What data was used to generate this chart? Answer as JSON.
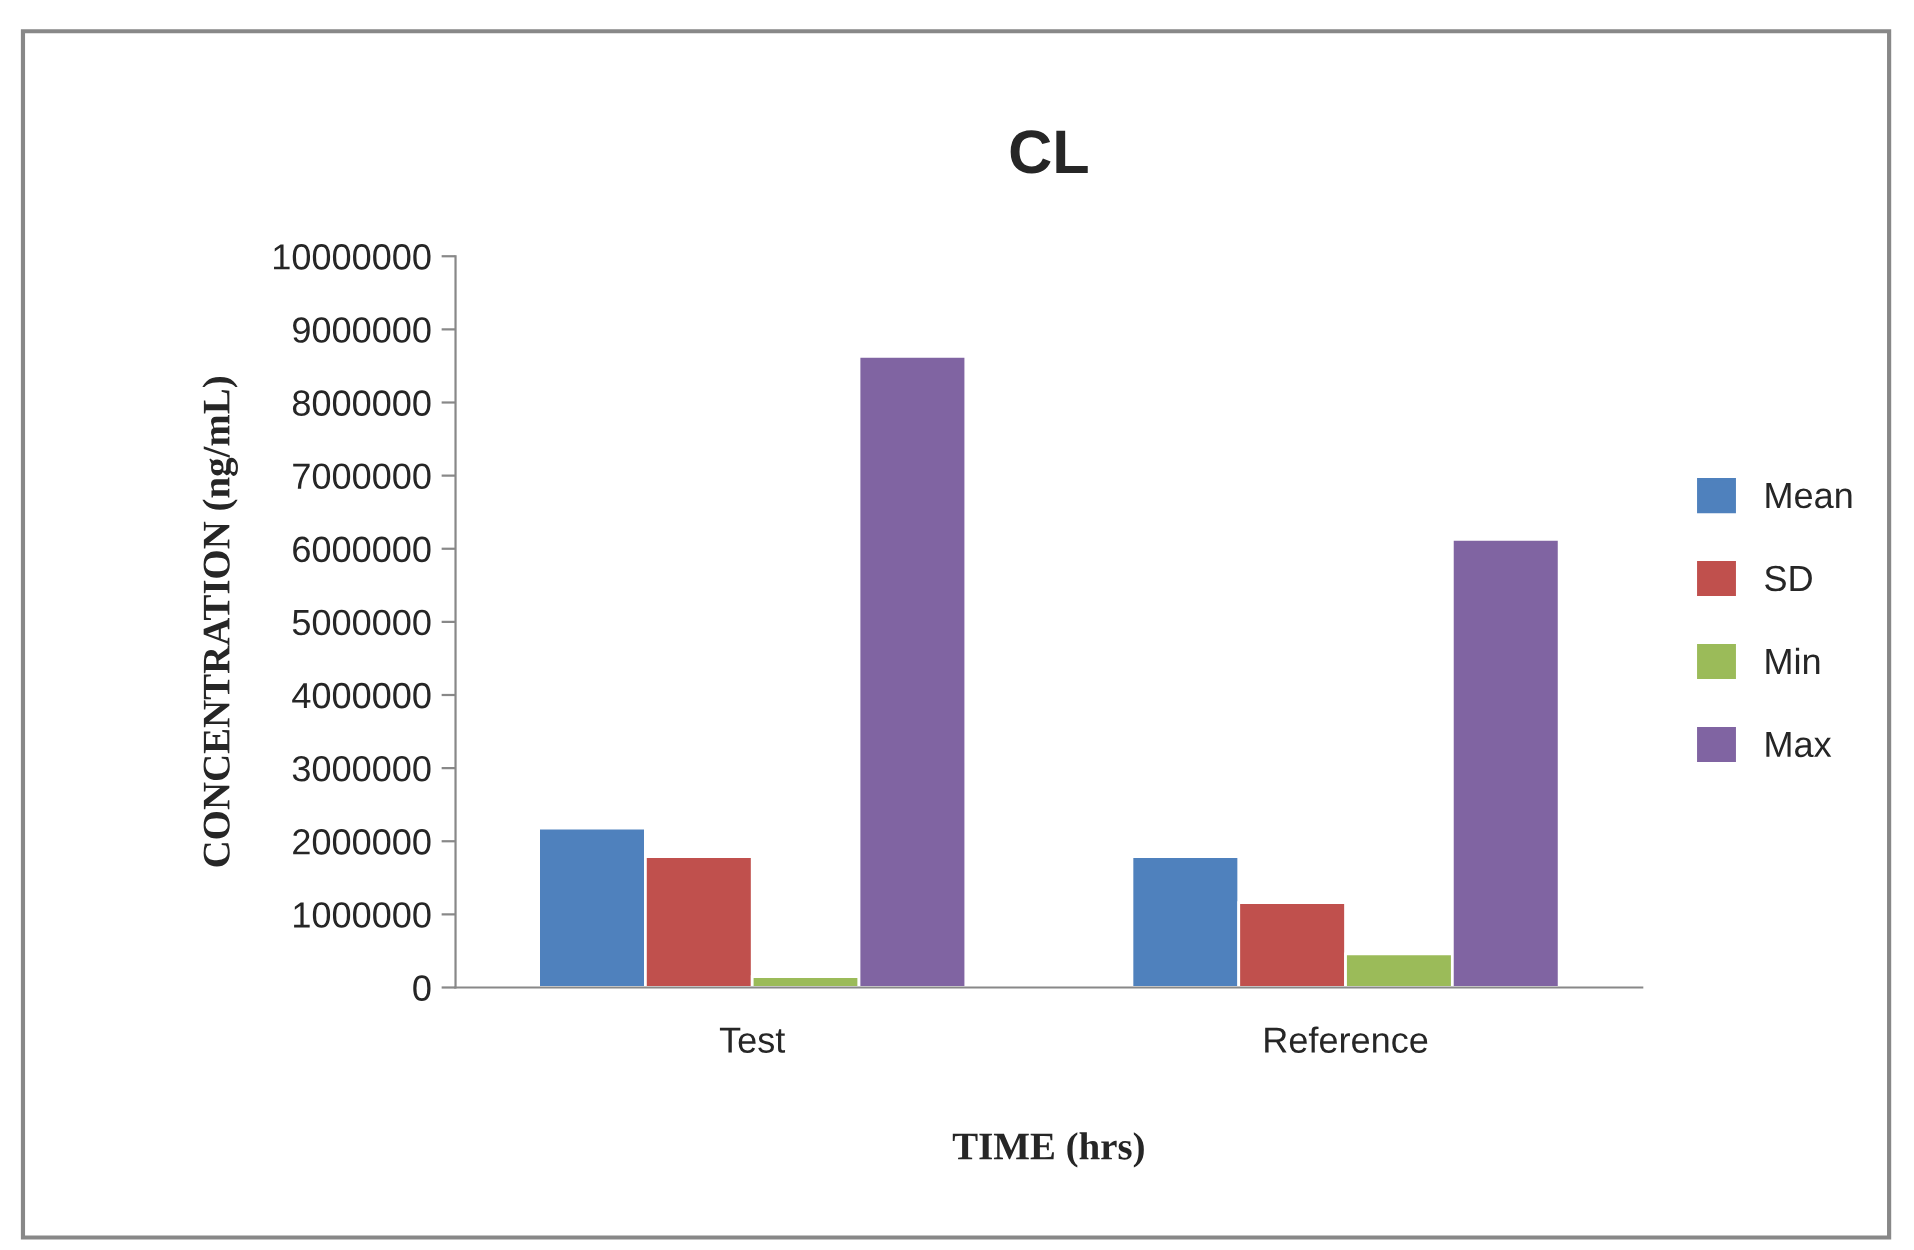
{
  "chart_data": {
    "type": "bar",
    "title": "CL",
    "xlabel": "TIME (hrs)",
    "ylabel": "CONCENTRATION (ng/mL)",
    "categories": [
      "Test",
      "Reference"
    ],
    "series": [
      {
        "name": "Mean",
        "color": "#4f81bd",
        "values": [
          2180000,
          1790000
        ]
      },
      {
        "name": "SD",
        "color": "#c0504d",
        "values": [
          1790000,
          1160000
        ]
      },
      {
        "name": "Min",
        "color": "#9bbb59",
        "values": [
          150000,
          460000
        ]
      },
      {
        "name": "Max",
        "color": "#8064a2",
        "values": [
          8630000,
          6130000
        ]
      }
    ],
    "ylim": [
      0,
      10000000
    ],
    "yticks": [
      0,
      1000000,
      2000000,
      3000000,
      4000000,
      5000000,
      6000000,
      7000000,
      8000000,
      9000000,
      10000000
    ],
    "grid": false,
    "legend": "right"
  }
}
